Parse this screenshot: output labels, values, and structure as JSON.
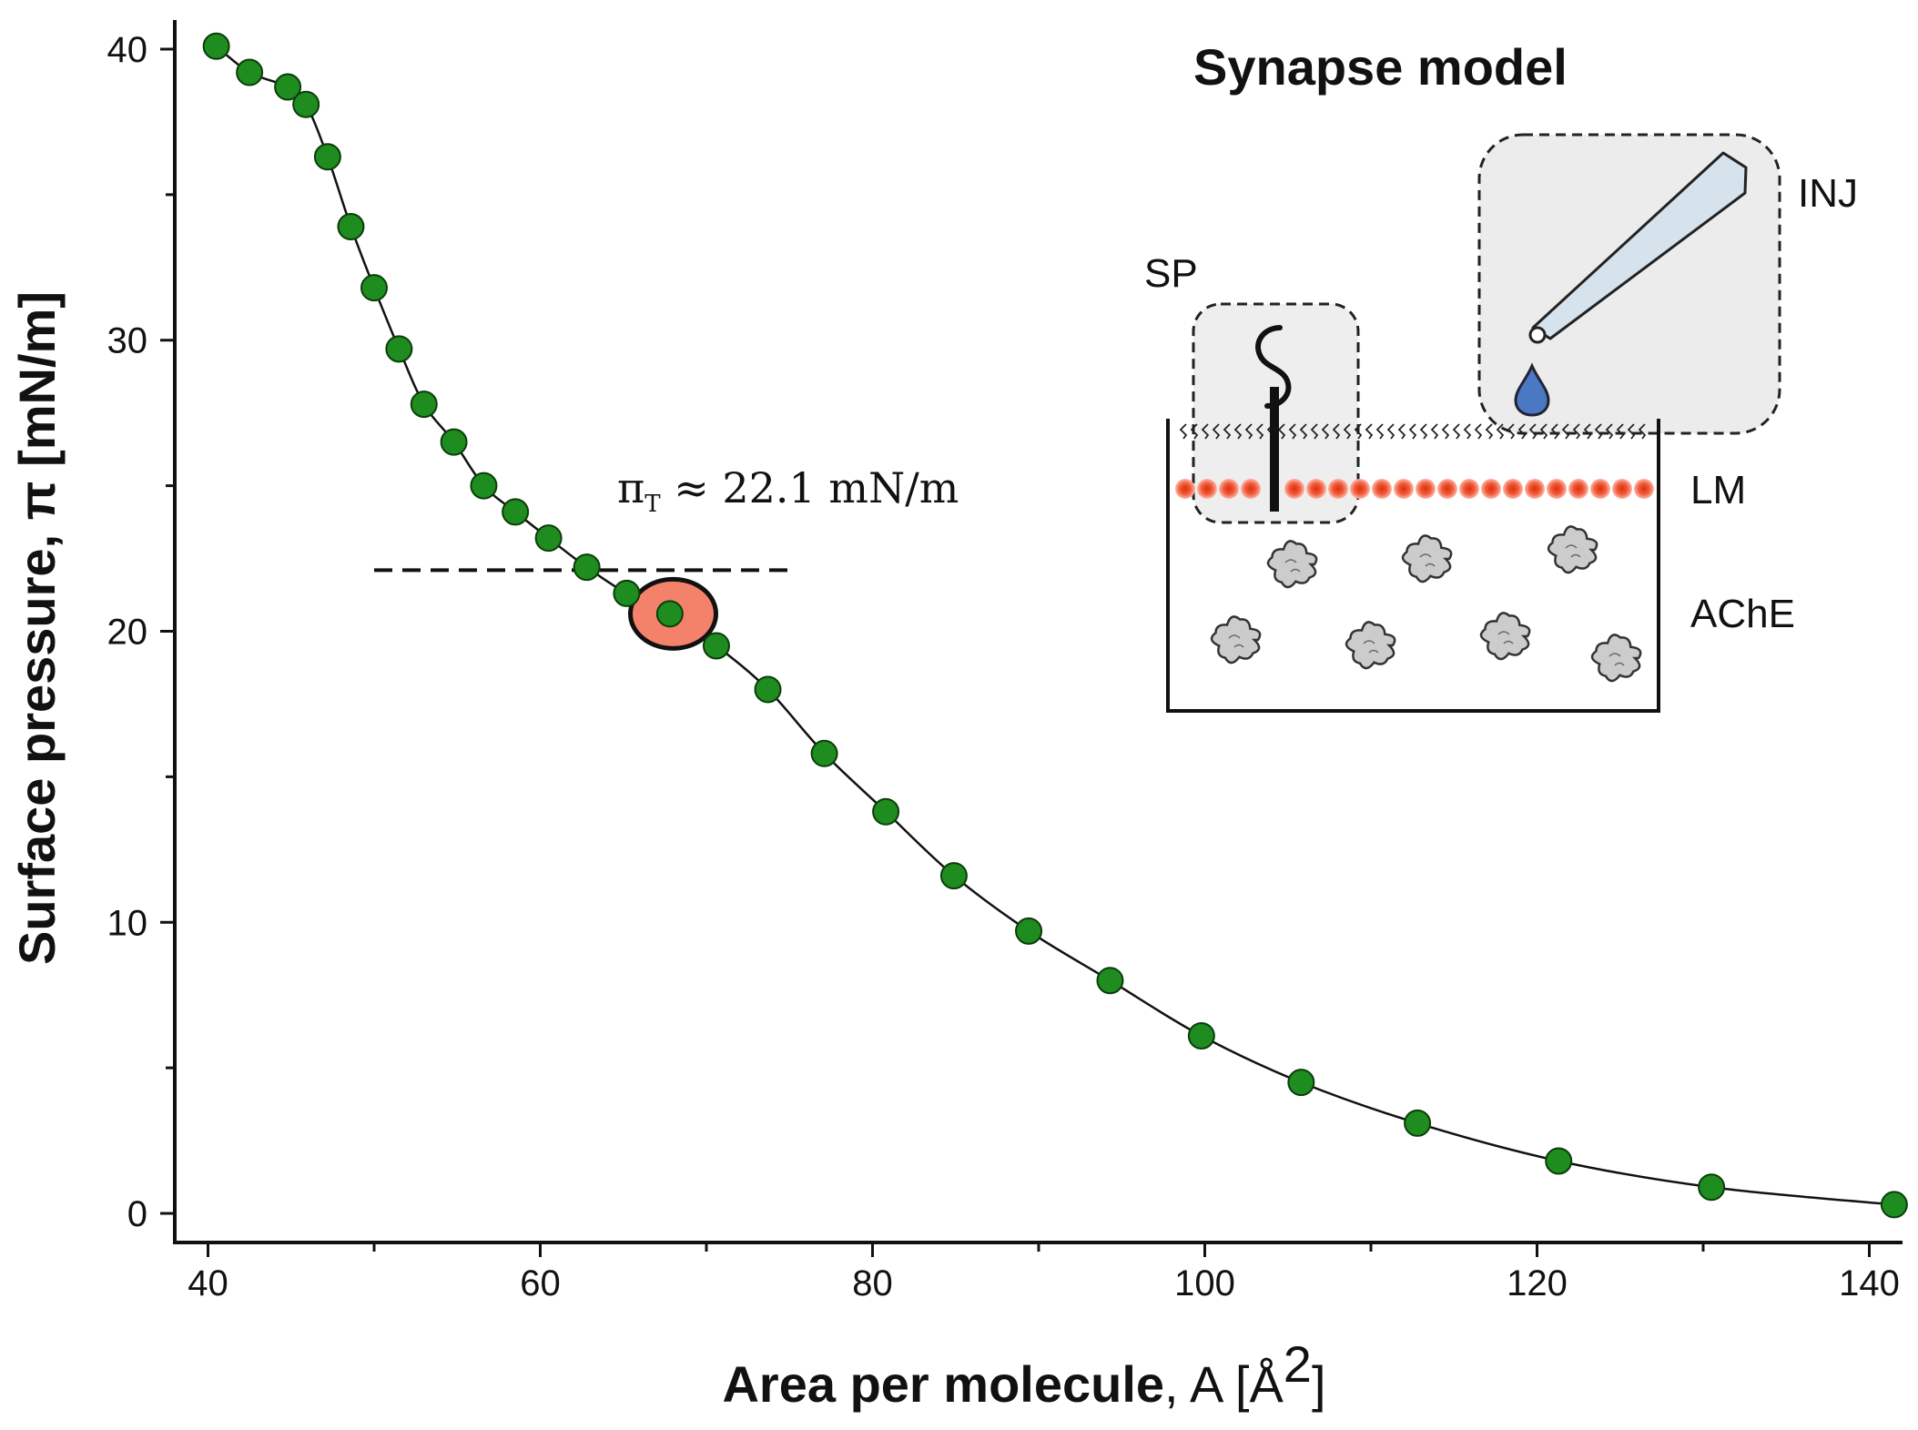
{
  "chart_data": {
    "type": "scatter",
    "title": "",
    "xlabel_bold": "Area per molecule",
    "xlabel_rest": ", A [Å",
    "xlabel_sup": "2",
    "xlabel_end": "]",
    "ylabel": "Surface pressure, π [mN/m]",
    "xlim": [
      38,
      142
    ],
    "ylim": [
      -1,
      41
    ],
    "x_ticks": [
      "40",
      "60",
      "80",
      "100",
      "120",
      "140"
    ],
    "y_ticks": [
      "0",
      "10",
      "20",
      "30",
      "40"
    ],
    "colors": {
      "points": "#1e8c1e",
      "point_edge": "#0b3d0b",
      "highlight_fill": "#f4826b",
      "highlight_edge": "#111111",
      "inset_box": "#ececec",
      "lipid_head": "#f25b3a",
      "droplet": "#4a78c2",
      "injector": "#d6e2ec",
      "protein": "#cccccc"
    },
    "series": [
      {
        "x": [
          40.5,
          42.5,
          44.8,
          45.9,
          47.2,
          48.6,
          50.0,
          51.5,
          53.0,
          54.8,
          56.6,
          58.5,
          60.5,
          62.8,
          65.2,
          67.8,
          70.6,
          73.7,
          77.1,
          80.8,
          84.9,
          89.4,
          94.3,
          99.8,
          105.8,
          112.8,
          121.3,
          130.5,
          141.5
        ],
        "y": [
          40.1,
          39.2,
          38.7,
          38.1,
          36.3,
          33.9,
          31.8,
          29.7,
          27.8,
          26.5,
          25.0,
          24.1,
          23.2,
          22.2,
          21.3,
          20.6,
          19.5,
          18.0,
          15.8,
          13.8,
          11.6,
          9.7,
          8.0,
          6.1,
          4.5,
          3.1,
          1.8,
          0.9,
          0.3
        ]
      }
    ],
    "threshold": {
      "y": 22.1,
      "x_from": 50,
      "x_to": 75.3,
      "label_pi": "π",
      "label_sub": "T",
      "label_rest": " ≈ 22.1 mN/m"
    },
    "highlight_point": {
      "x": 68.0,
      "y": 20.6
    },
    "inset": {
      "title": "Synapse model",
      "labels": {
        "sp": "SP",
        "inj": "INJ",
        "lm": "LM",
        "ache": "AChE"
      }
    }
  }
}
